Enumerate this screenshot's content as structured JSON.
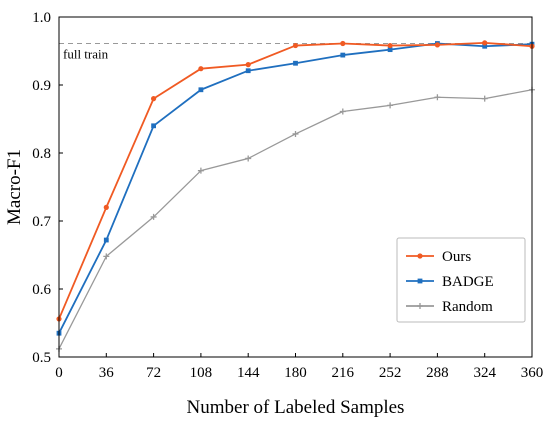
{
  "chart_data": {
    "type": "line",
    "xlabel": "Number of Labeled Samples",
    "ylabel": "Macro-F1",
    "xlim": [
      0,
      360
    ],
    "ylim": [
      0.5,
      1.0
    ],
    "xticks": [
      0,
      36,
      72,
      108,
      144,
      180,
      216,
      252,
      288,
      324,
      360
    ],
    "yticks": [
      0.5,
      0.6,
      0.7,
      0.8,
      0.9,
      1.0
    ],
    "ytick_labels": [
      "0.5",
      "0.6",
      "0.7",
      "0.8",
      "0.9",
      "1.0"
    ],
    "grid": false,
    "legend_position": "lower-right",
    "reference_line": {
      "label": "full train",
      "y": 0.961,
      "color": "#999999"
    },
    "x": [
      0,
      36,
      72,
      108,
      144,
      180,
      216,
      252,
      288,
      324,
      360
    ],
    "series": [
      {
        "name": "Ours",
        "color": "#f05a23",
        "marker": "circle",
        "values": [
          0.556,
          0.72,
          0.88,
          0.924,
          0.93,
          0.958,
          0.961,
          0.958,
          0.959,
          0.962,
          0.957
        ]
      },
      {
        "name": "BADGE",
        "color": "#1f6fbf",
        "marker": "square",
        "values": [
          0.535,
          0.672,
          0.84,
          0.893,
          0.921,
          0.932,
          0.944,
          0.952,
          0.961,
          0.957,
          0.96
        ]
      },
      {
        "name": "Random",
        "color": "#999999",
        "marker": "plus",
        "values": [
          0.512,
          0.648,
          0.706,
          0.774,
          0.792,
          0.828,
          0.861,
          0.87,
          0.882,
          0.88,
          0.893
        ]
      }
    ]
  }
}
